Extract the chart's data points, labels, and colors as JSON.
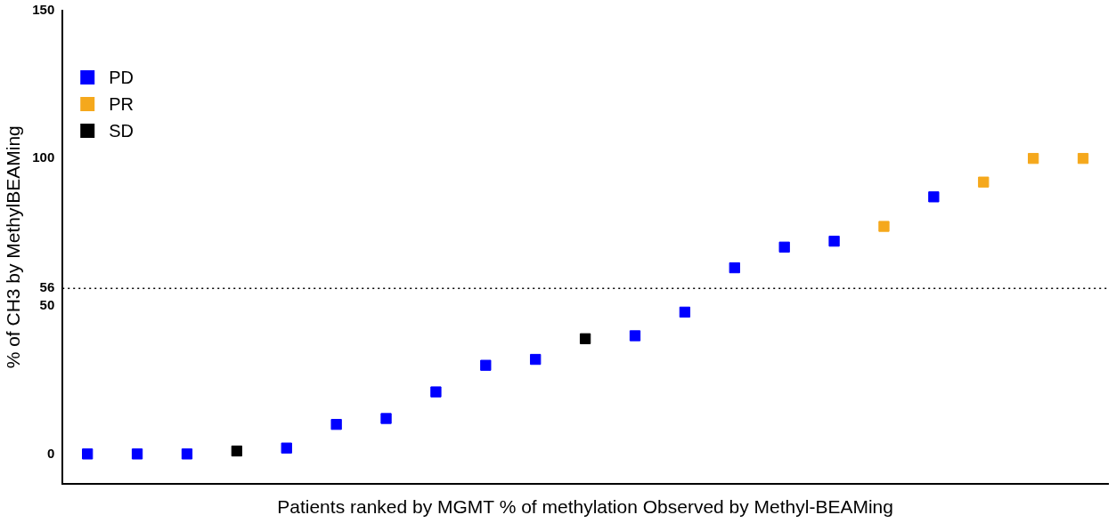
{
  "chart_data": {
    "type": "scatter",
    "xlabel": "Patients ranked by MGMT % of methylation Observed by Methyl-BEAMing",
    "ylabel": "% of CH3 by MethylBEAMing",
    "categories": [
      null,
      null,
      null,
      null,
      null,
      null,
      null,
      null,
      null,
      null,
      null,
      null,
      null,
      null,
      null,
      null,
      null,
      null,
      null,
      null,
      null
    ],
    "series": [
      {
        "name": "PD",
        "color": "#0000ff",
        "values": [
          0,
          0,
          0,
          null,
          2,
          10,
          12,
          21,
          30,
          32,
          null,
          40,
          48,
          63,
          70,
          72,
          null,
          87,
          null,
          null,
          null
        ]
      },
      {
        "name": "PR",
        "color": "#f5a81c",
        "values": [
          null,
          null,
          null,
          null,
          null,
          null,
          null,
          null,
          null,
          null,
          null,
          null,
          null,
          null,
          null,
          null,
          77,
          null,
          92,
          100,
          100
        ]
      },
      {
        "name": "SD",
        "color": "#000000",
        "values": [
          null,
          null,
          null,
          1,
          null,
          null,
          null,
          null,
          null,
          null,
          39,
          null,
          null,
          null,
          null,
          null,
          null,
          null,
          null,
          null,
          null
        ]
      }
    ],
    "ylim": [
      -10,
      150
    ],
    "yticks": [
      0,
      50,
      56,
      100,
      150
    ],
    "ref_lines": [
      {
        "axis": "y",
        "value": 56,
        "label": null,
        "line_style": "dotted",
        "color": "#000000"
      }
    ],
    "marker": "square",
    "legend": "top left",
    "grid": false
  }
}
